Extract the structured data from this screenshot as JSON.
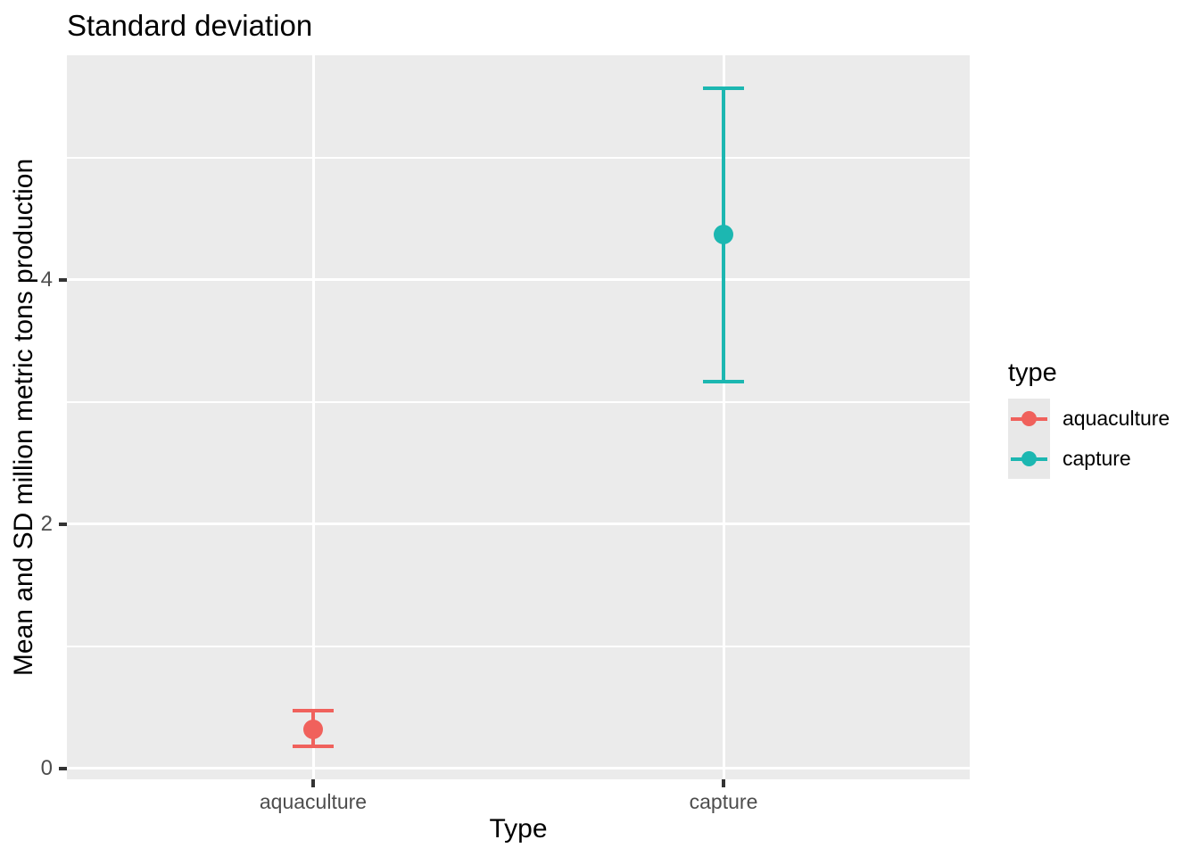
{
  "title": "Standard deviation",
  "axes": {
    "x": {
      "label": "Type",
      "tick_labels": [
        "aquaculture",
        "capture"
      ]
    },
    "y": {
      "label": "Mean and SD million metric tons production",
      "tick_labels": [
        "0",
        "2",
        "4"
      ],
      "tick_values": [
        0,
        2,
        4
      ]
    }
  },
  "legend": {
    "title": "type",
    "items": [
      {
        "label": "aquaculture",
        "color": "#F0615C"
      },
      {
        "label": "capture",
        "color": "#1CB7B1"
      }
    ]
  },
  "colors": {
    "panel_background": "#EBEBEB",
    "grid": "#FFFFFF",
    "tick_mark": "#333333",
    "tick_label": "#4D4D4D",
    "legend_key_background": "#E8E8E8"
  },
  "chart_data": {
    "type": "pointrange",
    "title": "Standard deviation",
    "xlabel": "Type",
    "ylabel": "Mean and SD million metric tons production",
    "categories": [
      "aquaculture",
      "capture"
    ],
    "series": [
      {
        "name": "aquaculture",
        "mean": 0.32,
        "lower": 0.18,
        "upper": 0.47,
        "color": "#F0615C"
      },
      {
        "name": "capture",
        "mean": 4.37,
        "lower": 3.17,
        "upper": 5.57,
        "color": "#1CB7B1"
      }
    ],
    "ylim": [
      -0.09,
      5.84
    ],
    "y_major_gridlines": [
      0,
      2,
      4
    ],
    "y_minor_gridlines": [
      1,
      3,
      5
    ],
    "grid": true,
    "legend_position": "right",
    "panel_background": "#EBEBEB"
  }
}
